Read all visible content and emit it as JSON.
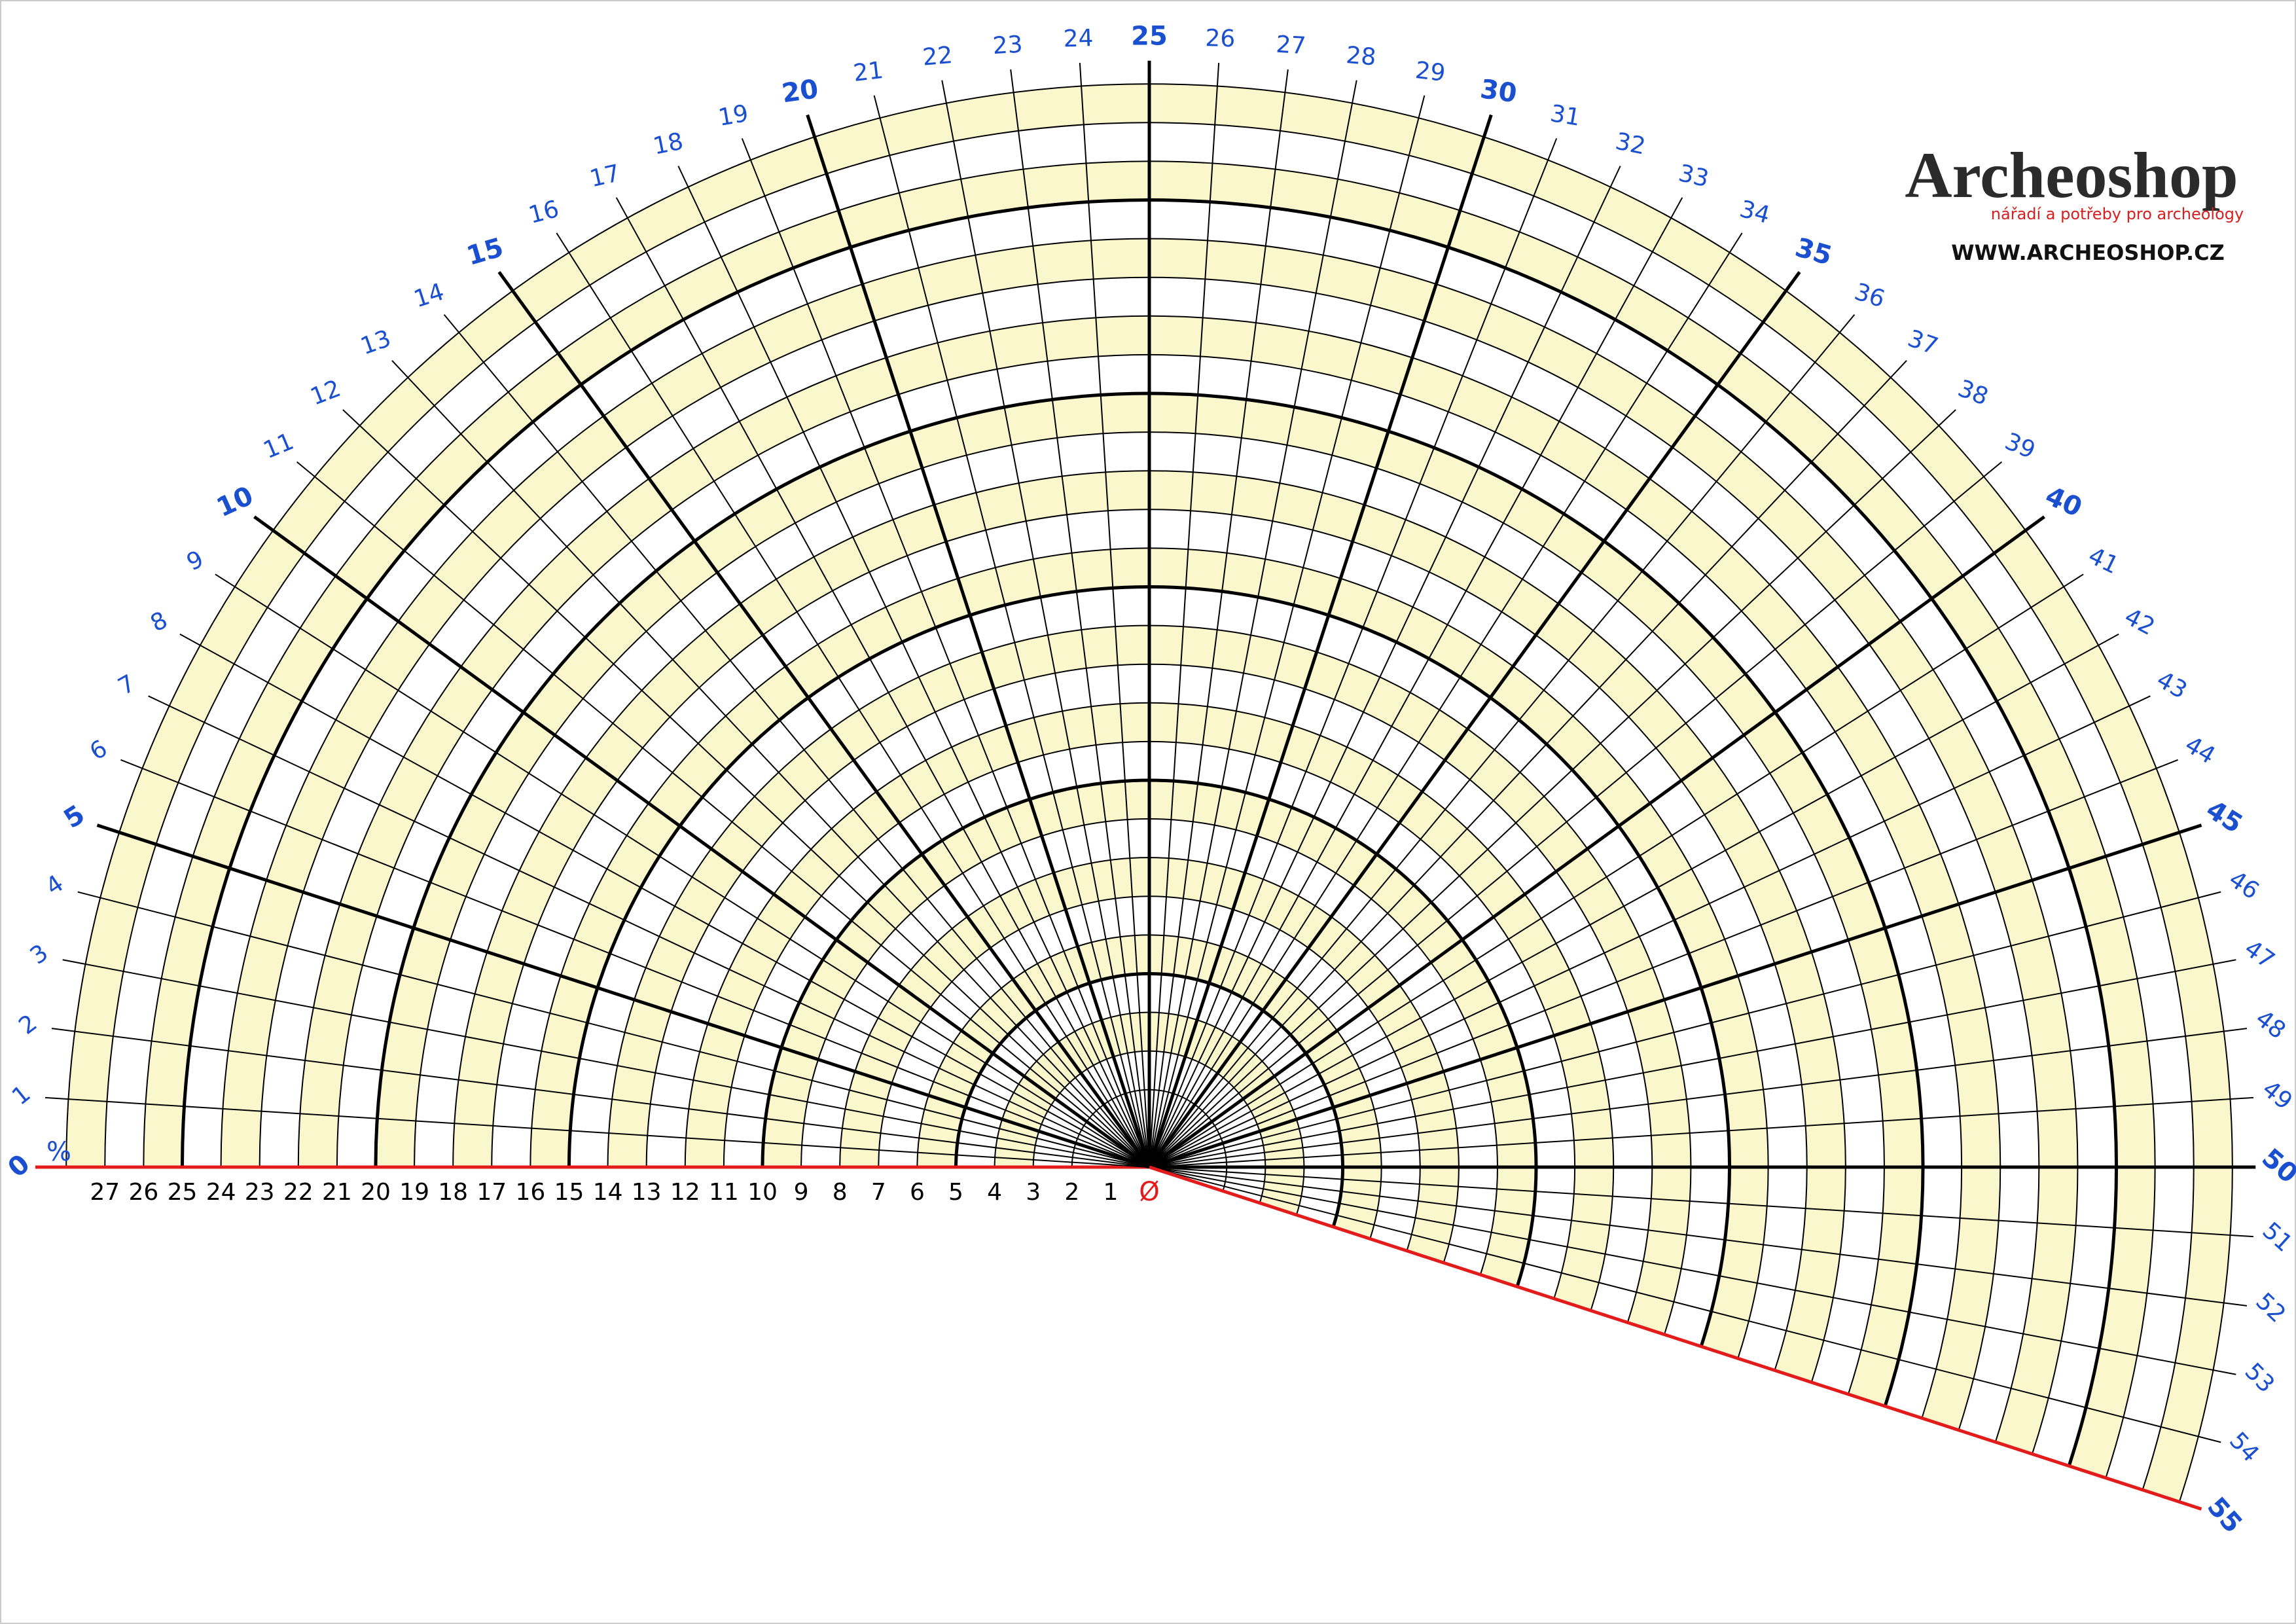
{
  "percent_sign": "%",
  "percent_labels": [
    0,
    1,
    2,
    3,
    4,
    5,
    6,
    7,
    8,
    9,
    10,
    11,
    12,
    13,
    14,
    15,
    16,
    17,
    18,
    19,
    20,
    21,
    22,
    23,
    24,
    25,
    26,
    27,
    28,
    29,
    30,
    31,
    32,
    33,
    34,
    35,
    36,
    37,
    38,
    39,
    40,
    41,
    42,
    43,
    44,
    45,
    46,
    47,
    48,
    49,
    50,
    51,
    52,
    53,
    54,
    55
  ],
  "diameter_labels": [
    1,
    2,
    3,
    4,
    5,
    6,
    7,
    8,
    9,
    10,
    11,
    12,
    13,
    14,
    15,
    16,
    17,
    18,
    19,
    20,
    21,
    22,
    23,
    24,
    25,
    26,
    27
  ],
  "center_symbol": "Ø",
  "logo": {
    "name": "Archeoshop",
    "tagline": "nářadí a potřeby pro archeology",
    "url": "WWW.ARCHEOSHOP.CZ"
  }
}
